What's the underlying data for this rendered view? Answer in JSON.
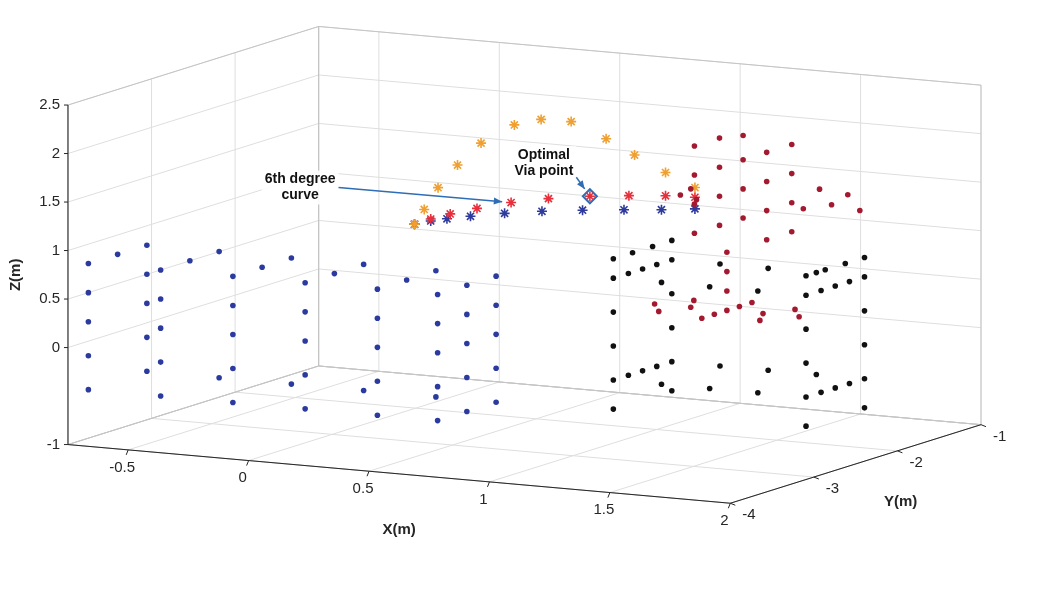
{
  "chart_data": {
    "type": "scatter",
    "x_label": "X(m)",
    "y_label": "Y(m)",
    "z_label": "Z(m)",
    "xlim": [
      -0.75,
      2
    ],
    "ylim": [
      -4,
      -1
    ],
    "zlim": [
      -1,
      2.5
    ],
    "xticks": [
      -0.5,
      0,
      0.5,
      1,
      1.5,
      2
    ],
    "yticks": [
      -4,
      -3,
      -2,
      -1
    ],
    "zticks": [
      -1,
      0,
      0.5,
      1,
      1.5,
      2,
      2.5
    ],
    "grid": true,
    "series": [
      {
        "color": "#2b3a9e",
        "marker": "circle",
        "points": [
          [
            -0.7,
            -3.9,
            -0.45
          ],
          [
            -0.4,
            -3.9,
            -0.45
          ],
          [
            -0.1,
            -3.9,
            -0.45
          ],
          [
            0.2,
            -3.9,
            -0.45
          ],
          [
            0.5,
            -3.9,
            -0.45
          ],
          [
            0.75,
            -3.9,
            -0.45
          ],
          [
            -0.7,
            -3.9,
            -0.1
          ],
          [
            -0.4,
            -3.9,
            -0.1
          ],
          [
            -0.1,
            -3.9,
            -0.1
          ],
          [
            0.2,
            -3.9,
            -0.1
          ],
          [
            0.5,
            -3.9,
            -0.1
          ],
          [
            0.75,
            -3.9,
            -0.1
          ],
          [
            -0.7,
            -3.9,
            0.25
          ],
          [
            -0.4,
            -3.9,
            0.25
          ],
          [
            -0.1,
            -3.9,
            0.25
          ],
          [
            0.2,
            -3.9,
            0.25
          ],
          [
            0.5,
            -3.9,
            0.25
          ],
          [
            0.75,
            -3.9,
            0.25
          ],
          [
            -0.7,
            -3.9,
            0.55
          ],
          [
            -0.4,
            -3.9,
            0.55
          ],
          [
            -0.1,
            -3.9,
            0.55
          ],
          [
            0.2,
            -3.9,
            0.55
          ],
          [
            0.5,
            -3.9,
            0.55
          ],
          [
            0.75,
            -3.9,
            0.55
          ],
          [
            -0.7,
            -3.9,
            0.85
          ],
          [
            -0.4,
            -3.9,
            0.85
          ],
          [
            -0.1,
            -3.9,
            0.85
          ],
          [
            0.2,
            -3.9,
            0.85
          ],
          [
            0.5,
            -3.9,
            0.85
          ],
          [
            0.75,
            -3.9,
            0.85
          ],
          [
            -0.7,
            -3.55,
            0.85
          ],
          [
            -0.4,
            -3.55,
            0.85
          ],
          [
            -0.1,
            -3.55,
            0.85
          ],
          [
            0.2,
            -3.55,
            0.85
          ],
          [
            0.5,
            -3.55,
            0.85
          ],
          [
            0.75,
            -3.55,
            0.85
          ],
          [
            -0.7,
            -3.2,
            0.85
          ],
          [
            -0.4,
            -3.2,
            0.85
          ],
          [
            -0.1,
            -3.2,
            0.85
          ],
          [
            0.2,
            -3.2,
            0.85
          ],
          [
            0.5,
            -3.2,
            0.85
          ],
          [
            0.75,
            -3.2,
            0.85
          ],
          [
            0.75,
            -3.55,
            -0.45
          ],
          [
            0.75,
            -3.55,
            -0.1
          ],
          [
            0.75,
            -3.55,
            0.25
          ],
          [
            0.75,
            -3.55,
            0.55
          ],
          [
            0.75,
            -3.2,
            -0.45
          ],
          [
            0.75,
            -3.2,
            -0.1
          ],
          [
            0.75,
            -3.2,
            0.25
          ],
          [
            0.75,
            -3.2,
            0.55
          ],
          [
            -0.7,
            -3.2,
            -0.45
          ],
          [
            -0.4,
            -3.2,
            -0.45
          ],
          [
            -0.1,
            -3.2,
            -0.45
          ],
          [
            0.2,
            -3.2,
            -0.45
          ],
          [
            0.5,
            -3.2,
            -0.45
          ],
          [
            -0.7,
            -3.2,
            -0.1
          ],
          [
            -0.7,
            -3.2,
            0.25
          ],
          [
            -0.7,
            -3.2,
            0.55
          ]
        ]
      },
      {
        "color": "#111111",
        "marker": "circle",
        "points": [
          [
            1.15,
            -2.95,
            -0.5
          ],
          [
            1.15,
            -2.95,
            -0.2
          ],
          [
            1.15,
            -2.95,
            0.15
          ],
          [
            1.15,
            -2.95,
            0.5
          ],
          [
            1.15,
            -2.95,
            0.85
          ],
          [
            1.95,
            -2.95,
            -0.5
          ],
          [
            1.95,
            -2.95,
            -0.2
          ],
          [
            1.95,
            -2.95,
            0.15
          ],
          [
            1.95,
            -2.95,
            0.5
          ],
          [
            1.95,
            -2.95,
            0.85
          ],
          [
            1.15,
            -2.25,
            -0.5
          ],
          [
            1.15,
            -2.25,
            -0.2
          ],
          [
            1.15,
            -2.25,
            0.15
          ],
          [
            1.15,
            -2.25,
            0.5
          ],
          [
            1.15,
            -2.25,
            0.85
          ],
          [
            1.95,
            -2.25,
            -0.5
          ],
          [
            1.95,
            -2.25,
            -0.2
          ],
          [
            1.95,
            -2.25,
            0.15
          ],
          [
            1.95,
            -2.25,
            0.5
          ],
          [
            1.95,
            -2.25,
            0.85
          ],
          [
            1.35,
            -2.95,
            0.85
          ],
          [
            1.55,
            -2.95,
            0.85
          ],
          [
            1.75,
            -2.95,
            0.85
          ],
          [
            1.35,
            -2.25,
            0.85
          ],
          [
            1.55,
            -2.25,
            0.85
          ],
          [
            1.75,
            -2.25,
            0.85
          ],
          [
            1.15,
            -2.77,
            0.85
          ],
          [
            1.15,
            -2.6,
            0.85
          ],
          [
            1.15,
            -2.43,
            0.85
          ],
          [
            1.95,
            -2.77,
            0.85
          ],
          [
            1.95,
            -2.6,
            0.85
          ],
          [
            1.95,
            -2.43,
            0.85
          ],
          [
            1.35,
            -2.95,
            -0.2
          ],
          [
            1.55,
            -2.95,
            -0.2
          ],
          [
            1.75,
            -2.95,
            -0.2
          ],
          [
            1.35,
            -2.25,
            -0.2
          ],
          [
            1.55,
            -2.25,
            -0.2
          ],
          [
            1.75,
            -2.25,
            -0.2
          ],
          [
            1.15,
            -2.77,
            -0.2
          ],
          [
            1.15,
            -2.6,
            -0.2
          ],
          [
            1.15,
            -2.43,
            -0.2
          ],
          [
            1.95,
            -2.77,
            -0.2
          ],
          [
            1.95,
            -2.6,
            -0.2
          ],
          [
            1.95,
            -2.43,
            -0.2
          ],
          [
            1.15,
            -2.95,
            1.05
          ],
          [
            1.15,
            -2.72,
            1.05
          ],
          [
            1.15,
            -2.48,
            1.05
          ],
          [
            1.15,
            -2.25,
            1.05
          ],
          [
            1.95,
            -2.95,
            1.05
          ],
          [
            1.95,
            -2.72,
            1.05
          ],
          [
            1.95,
            -2.48,
            1.05
          ],
          [
            1.95,
            -2.25,
            1.05
          ]
        ]
      },
      {
        "color": "#a31a30",
        "marker": "circle",
        "points": [
          [
            1.8,
            -2.6,
            0.5
          ],
          [
            1.71,
            -2.39,
            0.5
          ],
          [
            1.5,
            -2.3,
            0.5
          ],
          [
            1.29,
            -2.39,
            0.5
          ],
          [
            1.2,
            -2.6,
            0.5
          ],
          [
            1.29,
            -2.81,
            0.5
          ],
          [
            1.5,
            -2.9,
            0.5
          ],
          [
            1.71,
            -2.81,
            0.5
          ],
          [
            1.65,
            -2.6,
            0.5
          ],
          [
            1.5,
            -2.45,
            0.5
          ],
          [
            1.35,
            -2.6,
            0.5
          ],
          [
            1.5,
            -2.75,
            0.5
          ],
          [
            1.5,
            -2.6,
            0.5
          ],
          [
            1.5,
            -2.6,
            0.7
          ],
          [
            1.5,
            -2.6,
            0.9
          ],
          [
            1.5,
            -2.6,
            1.1
          ],
          [
            1.4,
            -2.7,
            1.3
          ],
          [
            1.7,
            -2.7,
            1.3
          ],
          [
            1.4,
            -2.4,
            1.3
          ],
          [
            1.7,
            -2.4,
            1.3
          ],
          [
            1.4,
            -2.7,
            1.6
          ],
          [
            1.7,
            -2.7,
            1.6
          ],
          [
            1.4,
            -2.4,
            1.6
          ],
          [
            1.7,
            -2.4,
            1.6
          ],
          [
            1.4,
            -2.7,
            1.9
          ],
          [
            1.7,
            -2.7,
            1.9
          ],
          [
            1.4,
            -2.4,
            1.9
          ],
          [
            1.7,
            -2.4,
            1.9
          ],
          [
            1.4,
            -2.7,
            2.2
          ],
          [
            1.7,
            -2.7,
            2.2
          ],
          [
            1.4,
            -2.4,
            2.2
          ],
          [
            1.7,
            -2.4,
            2.2
          ],
          [
            1.55,
            -2.55,
            2.3
          ],
          [
            1.35,
            -2.6,
            1.72
          ],
          [
            1.3,
            -2.58,
            1.64
          ],
          [
            1.36,
            -2.56,
            1.6
          ],
          [
            1.8,
            -2.55,
            1.6
          ],
          [
            1.9,
            -2.5,
            1.65
          ],
          [
            2.0,
            -2.45,
            1.6
          ],
          [
            1.85,
            -2.5,
            1.8
          ],
          [
            1.95,
            -2.45,
            1.75
          ],
          [
            1.55,
            -2.55,
            1.45
          ],
          [
            1.55,
            -2.55,
            1.75
          ],
          [
            1.55,
            -2.55,
            2.05
          ]
        ]
      },
      {
        "color": "#f0a030",
        "marker": "star",
        "points": [
          [
            0.55,
            -3.6,
            1.45
          ],
          [
            0.58,
            -3.57,
            1.6
          ],
          [
            0.62,
            -3.52,
            1.82
          ],
          [
            0.68,
            -3.46,
            2.05
          ],
          [
            0.75,
            -3.38,
            2.27
          ],
          [
            0.85,
            -3.27,
            2.45
          ],
          [
            0.93,
            -3.18,
            2.5
          ],
          [
            1.02,
            -3.08,
            2.47
          ],
          [
            1.12,
            -2.95,
            2.28
          ],
          [
            1.2,
            -2.84,
            2.1
          ],
          [
            1.28,
            -2.7,
            1.9
          ],
          [
            1.35,
            -2.55,
            1.72
          ]
        ]
      },
      {
        "color": "#e8303c",
        "marker": "star",
        "points": [
          [
            0.55,
            -3.6,
            1.45
          ],
          [
            0.6,
            -3.55,
            1.5
          ],
          [
            0.66,
            -3.49,
            1.55
          ],
          [
            0.74,
            -3.4,
            1.6
          ],
          [
            0.84,
            -3.28,
            1.65
          ],
          [
            0.95,
            -3.15,
            1.68
          ],
          [
            1.07,
            -3.0,
            1.69
          ],
          [
            1.18,
            -2.85,
            1.68
          ],
          [
            1.28,
            -2.7,
            1.66
          ],
          [
            1.35,
            -2.55,
            1.62
          ]
        ]
      },
      {
        "color": "#2e3a9c",
        "marker": "star",
        "points": [
          [
            0.55,
            -3.6,
            1.45
          ],
          [
            0.6,
            -3.55,
            1.48
          ],
          [
            0.65,
            -3.5,
            1.5
          ],
          [
            0.72,
            -3.42,
            1.52
          ],
          [
            0.82,
            -3.3,
            1.54
          ],
          [
            0.93,
            -3.17,
            1.55
          ],
          [
            1.05,
            -3.03,
            1.55
          ],
          [
            1.17,
            -2.88,
            1.54
          ],
          [
            1.27,
            -2.72,
            1.52
          ],
          [
            1.35,
            -2.55,
            1.5
          ]
        ]
      }
    ],
    "via_point": {
      "point": [
        1.07,
        -3.0,
        1.69
      ],
      "color": "#2f6db5",
      "marker": "diamond"
    },
    "annotations": [
      {
        "text": "Optimal Via point"
      },
      {
        "text": "6th degree curve"
      }
    ]
  }
}
